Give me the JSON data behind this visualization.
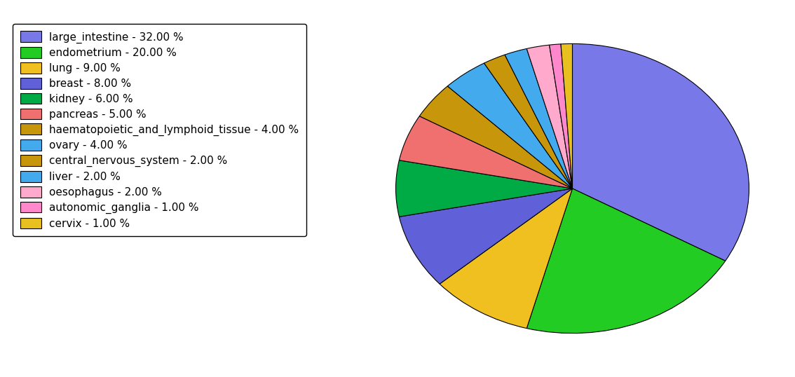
{
  "labels": [
    "large_intestine",
    "endometrium",
    "lung",
    "breast",
    "kidney",
    "pancreas",
    "haematopoietic_and_lymphoid_tissue",
    "ovary",
    "central_nervous_system",
    "liver",
    "oesophagus",
    "autonomic_ganglia",
    "cervix"
  ],
  "values": [
    32,
    20,
    9,
    8,
    6,
    5,
    4,
    4,
    2,
    2,
    2,
    1,
    1
  ],
  "colors": [
    "#7878e8",
    "#22cc22",
    "#f0c020",
    "#6060d8",
    "#00aa44",
    "#f07070",
    "#c8960a",
    "#44aaee",
    "#c8960a",
    "#44aaee",
    "#ffaacc",
    "#ff88cc",
    "#e8c020"
  ],
  "legend_labels": [
    "large_intestine - 32.00 %",
    "endometrium - 20.00 %",
    "lung - 9.00 %",
    "breast - 8.00 %",
    "kidney - 6.00 %",
    "pancreas - 5.00 %",
    "haematopoietic_and_lymphoid_tissue - 4.00 %",
    "ovary - 4.00 %",
    "central_nervous_system - 2.00 %",
    "liver - 2.00 %",
    "oesophagus - 2.00 %",
    "autonomic_ganglia - 1.00 %",
    "cervix - 1.00 %"
  ],
  "startangle": 90,
  "figsize": [
    11.34,
    5.38
  ],
  "dpi": 100,
  "legend_fontsize": 11,
  "pie_aspect": 0.82
}
